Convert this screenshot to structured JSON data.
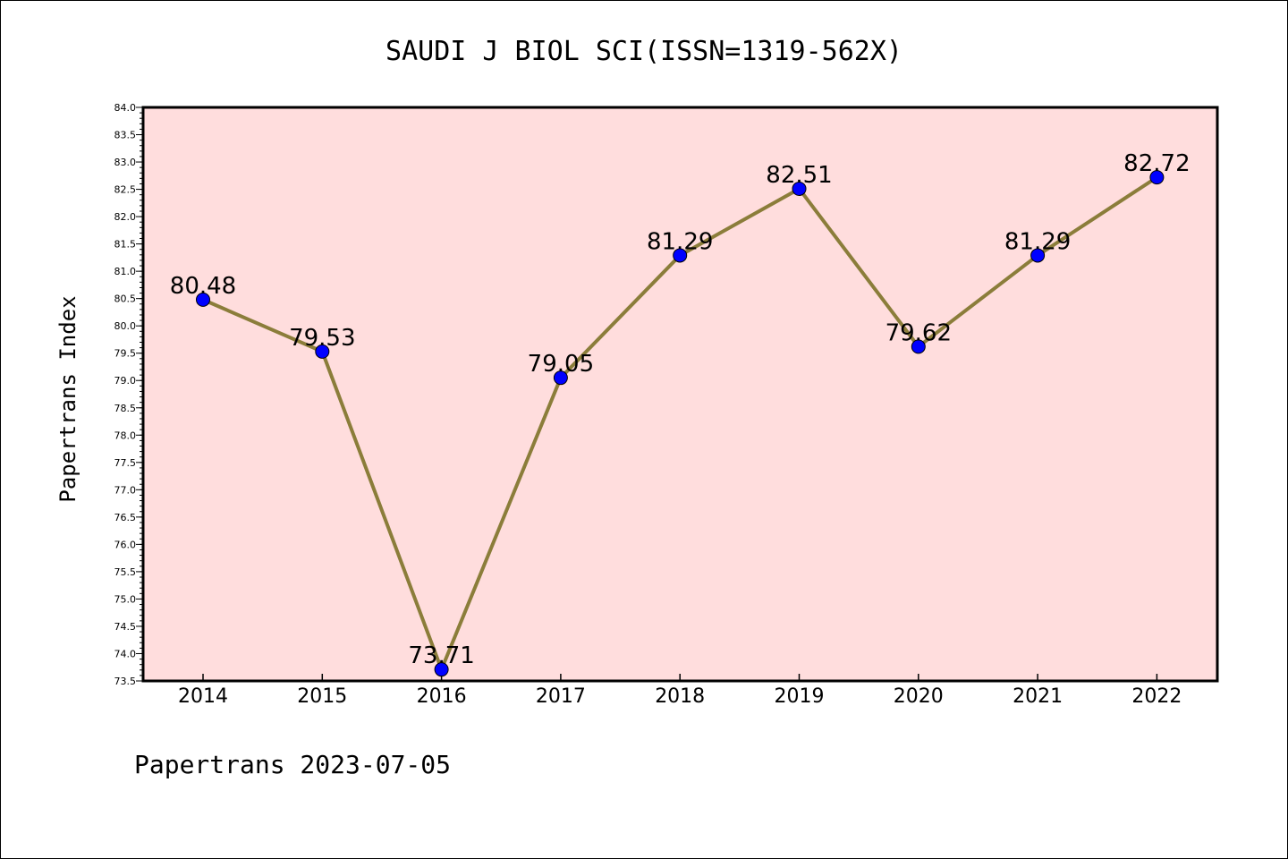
{
  "chart_data": {
    "type": "line",
    "title": "SAUDI J BIOL SCI(ISSN=1319-562X)",
    "ylabel": "Papertrans Index",
    "xlabel": "",
    "x": [
      "2014",
      "2015",
      "2016",
      "2017",
      "2018",
      "2019",
      "2020",
      "2021",
      "2022"
    ],
    "values": [
      80.48,
      79.53,
      73.71,
      79.05,
      81.29,
      82.51,
      79.62,
      81.29,
      82.72
    ],
    "data_labels": [
      "80.48",
      "79.53",
      "73.71",
      "79.05",
      "81.29",
      "82.51",
      "79.62",
      "81.29",
      "82.72"
    ],
    "ylim": [
      73.5,
      84.0
    ],
    "ytick_labels": [
      "73.5",
      "74.0",
      "74.5",
      "75.0",
      "75.5",
      "76.0",
      "76.5",
      "77.0",
      "77.5",
      "78.0",
      "78.5",
      "79.0",
      "79.5",
      "80.0",
      "80.5",
      "81.0",
      "81.5",
      "82.0",
      "82.5",
      "83.0",
      "83.5",
      "84.0"
    ],
    "grid": false,
    "colors": {
      "background": "#ffdddd",
      "line": "#8b7d3a",
      "marker": "#0000ff"
    }
  },
  "footer": "Papertrans 2023-07-05"
}
